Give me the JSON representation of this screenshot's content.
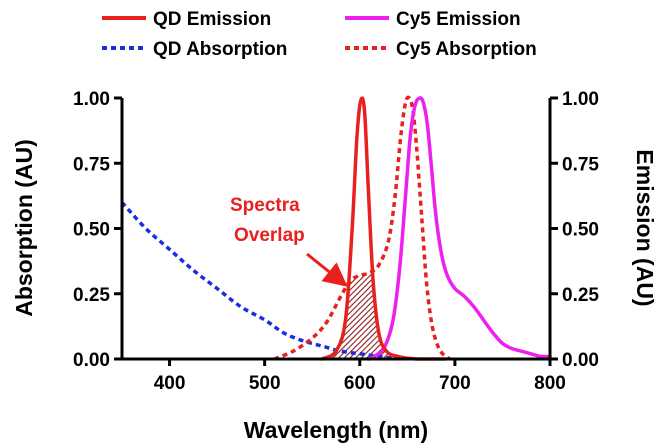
{
  "chart_data": {
    "type": "line",
    "xlabel": "Wavelength (nm)",
    "ylabel_left": "Absorption (AU)",
    "ylabel_right": "Emission (AU)",
    "xlim": [
      350,
      800
    ],
    "ylim": [
      0,
      1.0
    ],
    "x_ticks": [
      400,
      500,
      600,
      700,
      800
    ],
    "x_tick_labels": [
      "400",
      "500",
      "600",
      "700",
      "800"
    ],
    "y_ticks": [
      0,
      0.25,
      0.5,
      0.75,
      1.0
    ],
    "y_tick_labels": [
      "0.00",
      "0.25",
      "0.50",
      "0.75",
      "1.00"
    ],
    "grid": false,
    "legend_position": "top",
    "annotation": {
      "text_lines": [
        "Spectra",
        "Overlap"
      ],
      "color": "#e8201e",
      "target_x": 600,
      "target_y": 0.33
    },
    "series": [
      {
        "name": "QD Emission",
        "color": "#e8201e",
        "style": "solid",
        "x": [
          560,
          575,
          585,
          592,
          597,
          601,
          605,
          609,
          614,
          620,
          628,
          640,
          660,
          690
        ],
        "y": [
          0.0,
          0.03,
          0.15,
          0.5,
          0.85,
          0.99,
          0.95,
          0.65,
          0.3,
          0.1,
          0.03,
          0.01,
          0.0,
          0.0
        ]
      },
      {
        "name": "Cy5 Emission",
        "color": "#ee20ee",
        "style": "solid",
        "x": [
          610,
          625,
          635,
          642,
          648,
          653,
          658,
          663,
          667,
          671,
          675,
          680,
          686,
          692,
          700,
          710,
          720,
          730,
          740,
          750,
          760,
          770,
          780,
          790,
          800
        ],
        "y": [
          0.0,
          0.04,
          0.15,
          0.35,
          0.62,
          0.85,
          0.97,
          1.0,
          0.98,
          0.9,
          0.75,
          0.55,
          0.4,
          0.32,
          0.27,
          0.24,
          0.2,
          0.15,
          0.1,
          0.06,
          0.04,
          0.03,
          0.02,
          0.01,
          0.01
        ]
      },
      {
        "name": "QD Absorption",
        "color": "#1c2de0",
        "style": "dotted",
        "x": [
          350,
          375,
          400,
          425,
          450,
          475,
          500,
          520,
          540,
          560,
          580,
          600,
          620,
          640
        ],
        "y": [
          0.6,
          0.5,
          0.42,
          0.34,
          0.27,
          0.2,
          0.15,
          0.1,
          0.07,
          0.05,
          0.03,
          0.02,
          0.01,
          0.0
        ]
      },
      {
        "name": "Cy5 Absorption",
        "color": "#e8201e",
        "style": "dotted",
        "x": [
          510,
          530,
          550,
          565,
          580,
          590,
          600,
          610,
          620,
          630,
          637,
          643,
          648,
          652,
          656,
          660,
          665,
          670,
          675,
          680,
          685,
          690,
          695
        ],
        "y": [
          0.0,
          0.03,
          0.08,
          0.14,
          0.24,
          0.3,
          0.32,
          0.33,
          0.36,
          0.45,
          0.62,
          0.85,
          0.98,
          1.0,
          0.95,
          0.8,
          0.55,
          0.3,
          0.15,
          0.07,
          0.03,
          0.01,
          0.0
        ]
      }
    ]
  }
}
